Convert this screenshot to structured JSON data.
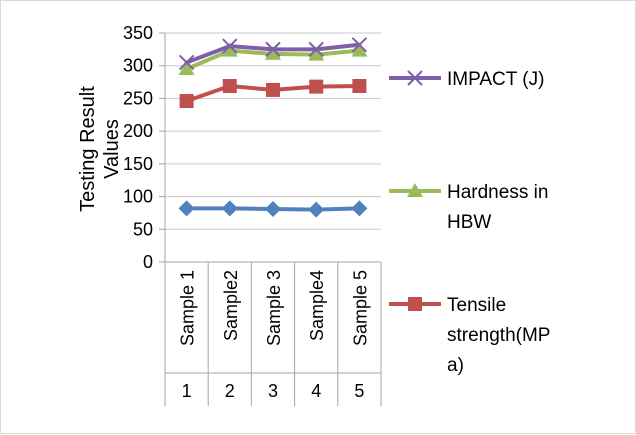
{
  "chart_data": {
    "type": "line",
    "categories": [
      "Sample 1",
      "Sample2",
      "Sample 3",
      "Sample4",
      "Sample 5"
    ],
    "category_numbers": [
      "1",
      "2",
      "3",
      "4",
      "5"
    ],
    "ylabel": "Testing Result Values",
    "ylabel_lines": [
      "Testing Result",
      "Values"
    ],
    "ylim": [
      0,
      350
    ],
    "yticks": [
      0,
      50,
      100,
      150,
      200,
      250,
      300,
      350
    ],
    "grid": true,
    "legend_position": "right",
    "series": [
      {
        "name": "IMPACT (J)",
        "name_lines": [
          "IMPACT (J)"
        ],
        "color": "#7f5fa8",
        "marker": "x",
        "values": [
          305,
          330,
          325,
          325,
          332
        ]
      },
      {
        "name": "Hardness in HBW",
        "name_lines": [
          "Hardness in",
          "HBW"
        ],
        "color": "#9bbb59",
        "marker": "triangle",
        "values": [
          295,
          323,
          318,
          317,
          323
        ]
      },
      {
        "name": "Tensile strength(MPa)",
        "name_lines": [
          "Tensile",
          "strength(MP",
          "a)"
        ],
        "color": "#c0504d",
        "marker": "square",
        "values": [
          246,
          269,
          263,
          268,
          269
        ]
      },
      {
        "name": "",
        "name_lines": [],
        "color": "#4f81bd",
        "marker": "diamond",
        "values": [
          82,
          82,
          81,
          80,
          82
        ]
      }
    ]
  }
}
